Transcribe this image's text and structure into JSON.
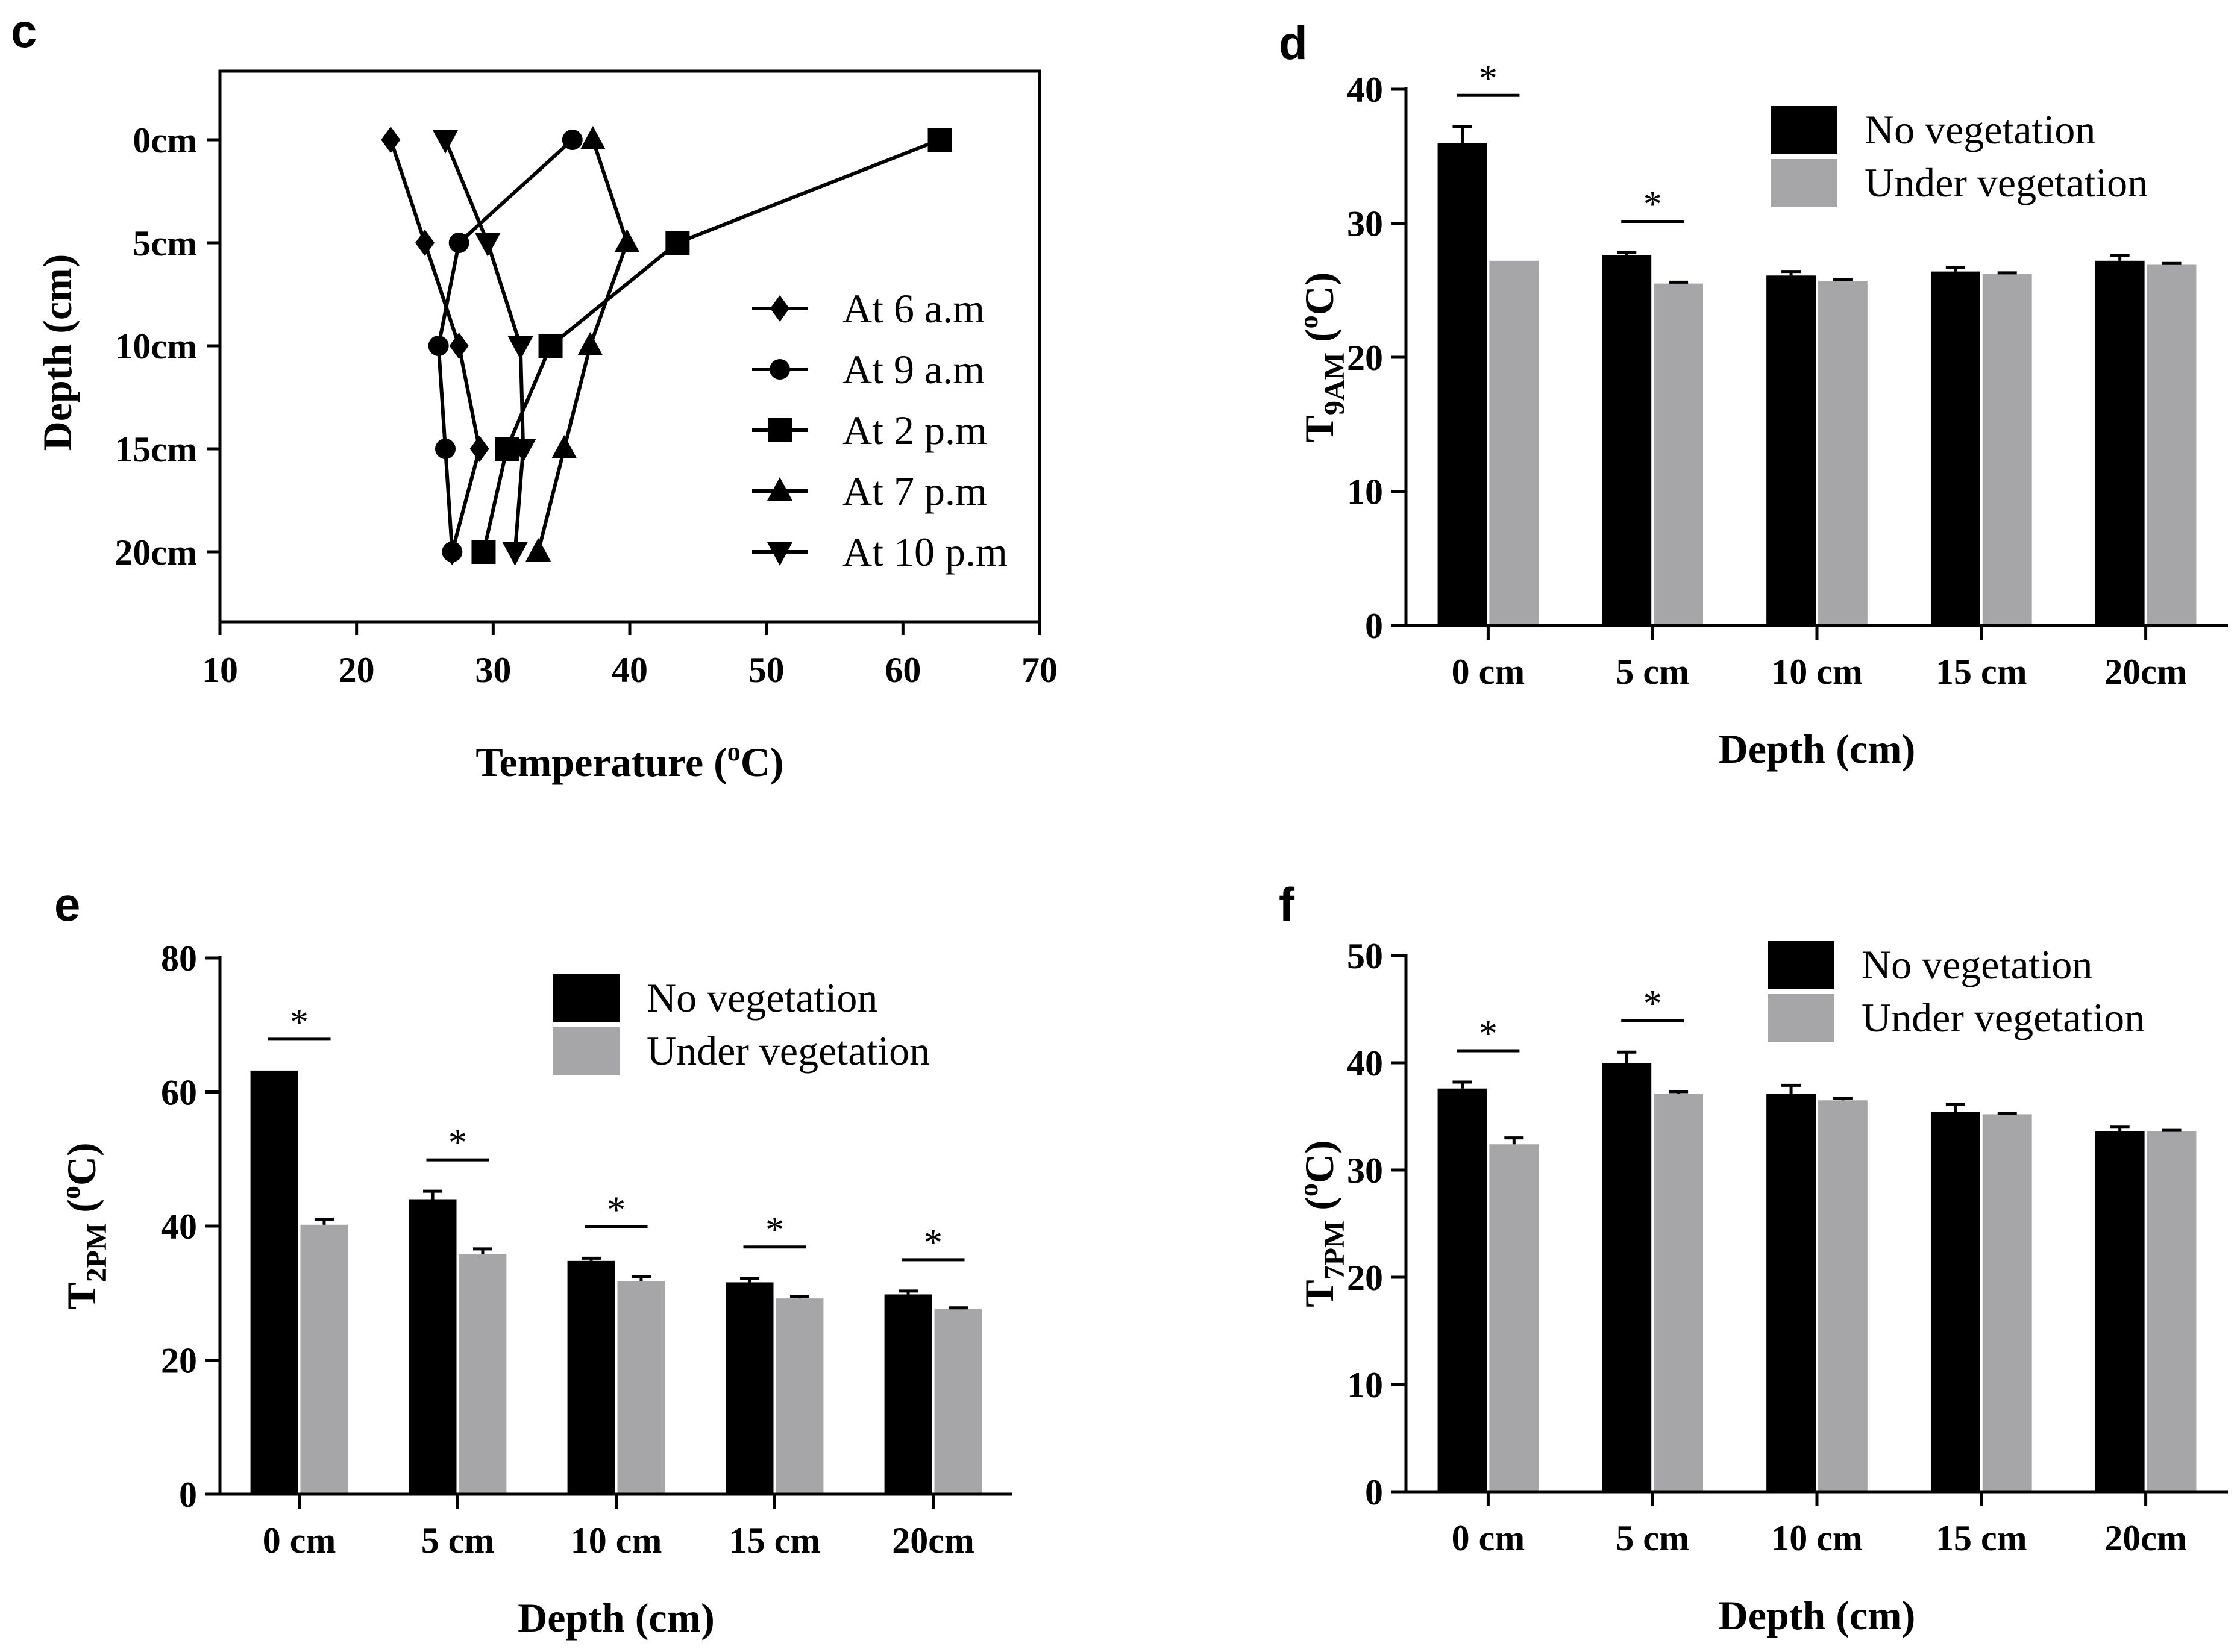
{
  "chart_data": [
    {
      "panel": "c",
      "type": "line",
      "xlabel": "Temperature (",
      "xlabel_sup": "o",
      "xlabel_end": "C)",
      "ylabel": "Depth (cm)",
      "xlim": [
        10,
        70
      ],
      "xticks": [
        "10",
        "20",
        "30",
        "40",
        "50",
        "60",
        "70"
      ],
      "categories": [
        "0cm",
        "5cm",
        "10cm",
        "15cm",
        "20cm"
      ],
      "series": [
        {
          "name": "At 6 a.m",
          "marker": "diamond",
          "x": [
            22.5,
            25,
            27.5,
            29,
            27
          ]
        },
        {
          "name": "At 9 a.m",
          "marker": "circle",
          "x": [
            35.8,
            27.5,
            26,
            26.5,
            27
          ]
        },
        {
          "name": "At 2 p.m",
          "marker": "square",
          "x": [
            62.7,
            43.5,
            34.2,
            31,
            29.3
          ]
        },
        {
          "name": "At 7 p.m",
          "marker": "triangle-up",
          "x": [
            37.3,
            39.8,
            37.1,
            35.2,
            33.3
          ]
        },
        {
          "name": "At 10 p.m",
          "marker": "triangle-down",
          "x": [
            26.5,
            29.6,
            32,
            32.2,
            31.6
          ]
        }
      ]
    },
    {
      "panel": "d",
      "type": "bar",
      "ylabel": "T",
      "ylabel_sub": "9AM",
      "ylabel_unit": " (",
      "ylabel_sup": "o",
      "ylabel_end": "C)",
      "xlabel": "Depth (cm)",
      "ylim": [
        0,
        40
      ],
      "yticks": [
        "0",
        "10",
        "20",
        "30",
        "40"
      ],
      "categories": [
        "0 cm",
        "5 cm",
        "10 cm",
        "15 cm",
        "20cm"
      ],
      "series": [
        {
          "name": "No vegetation",
          "values": [
            36,
            27.6,
            26.1,
            26.4,
            27.2
          ],
          "errors": [
            1.2,
            0.2,
            0.3,
            0.3,
            0.4
          ]
        },
        {
          "name": "Under vegetation",
          "values": [
            27.2,
            25.5,
            25.7,
            26.2,
            26.9
          ],
          "errors": [
            0,
            0.1,
            0.1,
            0.1,
            0.1
          ]
        }
      ],
      "significance": [
        {
          "category_index": 0,
          "label": "*"
        },
        {
          "category_index": 1,
          "label": "*"
        }
      ]
    },
    {
      "panel": "e",
      "type": "bar",
      "ylabel": "T",
      "ylabel_sub": "2PM",
      "ylabel_unit": " (",
      "ylabel_sup": "o",
      "ylabel_end": "C)",
      "xlabel": "Depth (cm)",
      "ylim": [
        0,
        80
      ],
      "yticks": [
        "0",
        "20",
        "40",
        "60",
        "80"
      ],
      "categories": [
        "0 cm",
        "5 cm",
        "10 cm",
        "15 cm",
        "20cm"
      ],
      "series": [
        {
          "name": "No vegetation",
          "values": [
            63.2,
            44,
            34.8,
            31.6,
            29.8
          ],
          "errors": [
            0,
            1.2,
            0.4,
            0.6,
            0.5
          ]
        },
        {
          "name": "Under vegetation",
          "values": [
            40.2,
            35.8,
            31.8,
            29.2,
            27.6
          ],
          "errors": [
            0.8,
            0.8,
            0.7,
            0.3,
            0.2
          ]
        }
      ],
      "significance": [
        {
          "category_index": 0,
          "label": "*"
        },
        {
          "category_index": 1,
          "label": "*"
        },
        {
          "category_index": 2,
          "label": "*"
        },
        {
          "category_index": 3,
          "label": "*"
        },
        {
          "category_index": 4,
          "label": "*"
        }
      ]
    },
    {
      "panel": "f",
      "type": "bar",
      "ylabel": "T",
      "ylabel_sub": "7PM",
      "ylabel_unit": " (",
      "ylabel_sup": "o",
      "ylabel_end": "C)",
      "xlabel": "Depth (cm)",
      "ylim": [
        0,
        50
      ],
      "yticks": [
        "0",
        "10",
        "20",
        "30",
        "40",
        "50"
      ],
      "categories": [
        "0 cm",
        "5 cm",
        "10 cm",
        "15 cm",
        "20cm"
      ],
      "series": [
        {
          "name": "No vegetation",
          "values": [
            37.6,
            40,
            37.1,
            35.4,
            33.6
          ],
          "errors": [
            0.6,
            1,
            0.8,
            0.7,
            0.4
          ]
        },
        {
          "name": "Under vegetation",
          "values": [
            32.4,
            37.1,
            36.5,
            35.2,
            33.6
          ],
          "errors": [
            0.6,
            0.2,
            0.2,
            0.1,
            0.1
          ]
        }
      ],
      "significance": [
        {
          "category_index": 0,
          "label": "*"
        },
        {
          "category_index": 1,
          "label": "*"
        }
      ]
    }
  ],
  "colors": {
    "no_vegetation": "#000000",
    "under_vegetation": "#a6a6a9",
    "axis": "#000000"
  }
}
